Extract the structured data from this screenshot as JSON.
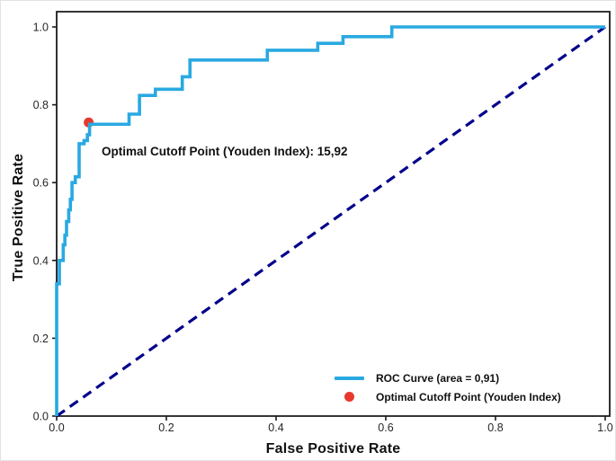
{
  "chart_data": {
    "type": "line",
    "xlabel": "False Positive Rate",
    "ylabel": "True Positive Rate",
    "x_ticks": [
      "0.0",
      "0.2",
      "0.4",
      "0.6",
      "0.8",
      "1.0"
    ],
    "y_ticks": [
      "0.0",
      "0.2",
      "0.4",
      "0.6",
      "0.8",
      "1.0"
    ],
    "xlim": [
      0,
      1.0
    ],
    "ylim": [
      0,
      1.04
    ],
    "grid": false,
    "legend_position": "lower right",
    "auc": "0,91",
    "optimal_cutoff_value": "15,92",
    "annotation": {
      "text": "Optimal Cutoff Point (Youden Index): 15,92",
      "x": 0.084,
      "y": 0.667
    },
    "series": [
      {
        "name": "ROC Curve (area = 0,91)",
        "style": "step-line",
        "color": "#29a9e1",
        "points": [
          [
            0.0,
            0.0
          ],
          [
            0.0,
            0.34
          ],
          [
            0.005,
            0.34
          ],
          [
            0.005,
            0.4
          ],
          [
            0.012,
            0.4
          ],
          [
            0.012,
            0.44
          ],
          [
            0.015,
            0.44
          ],
          [
            0.015,
            0.465
          ],
          [
            0.018,
            0.465
          ],
          [
            0.018,
            0.5
          ],
          [
            0.022,
            0.5
          ],
          [
            0.022,
            0.53
          ],
          [
            0.025,
            0.53
          ],
          [
            0.025,
            0.557
          ],
          [
            0.028,
            0.557
          ],
          [
            0.028,
            0.6
          ],
          [
            0.034,
            0.6
          ],
          [
            0.034,
            0.615
          ],
          [
            0.041,
            0.615
          ],
          [
            0.041,
            0.7
          ],
          [
            0.05,
            0.7
          ],
          [
            0.05,
            0.708
          ],
          [
            0.056,
            0.708
          ],
          [
            0.056,
            0.723
          ],
          [
            0.06,
            0.723
          ],
          [
            0.06,
            0.75
          ],
          [
            0.132,
            0.75
          ],
          [
            0.132,
            0.776
          ],
          [
            0.151,
            0.776
          ],
          [
            0.151,
            0.824
          ],
          [
            0.18,
            0.824
          ],
          [
            0.18,
            0.84
          ],
          [
            0.229,
            0.84
          ],
          [
            0.229,
            0.872
          ],
          [
            0.243,
            0.872
          ],
          [
            0.243,
            0.915
          ],
          [
            0.384,
            0.915
          ],
          [
            0.384,
            0.94
          ],
          [
            0.476,
            0.94
          ],
          [
            0.476,
            0.958
          ],
          [
            0.522,
            0.958
          ],
          [
            0.522,
            0.975
          ],
          [
            0.611,
            0.975
          ],
          [
            0.611,
            1.0
          ],
          [
            1.0,
            1.0
          ]
        ]
      },
      {
        "name": "Optimal Cutoff Point (Youden Index)",
        "style": "scatter",
        "color": "#e8392c",
        "points": [
          [
            0.06,
            0.75
          ]
        ]
      },
      {
        "name": "chance-diagonal",
        "style": "dashed-line",
        "color": "#00008b",
        "points": [
          [
            0.0,
            0.0
          ],
          [
            1.0,
            1.0
          ]
        ]
      }
    ]
  },
  "legend": {
    "entries": [
      {
        "label": "ROC Curve (area = 0,91)",
        "swatch": "line",
        "color": "#29a9e1"
      },
      {
        "label": "Optimal Cutoff Point (Youden Index)",
        "swatch": "dot",
        "color": "#e8392c"
      }
    ]
  },
  "colors": {
    "roc_curve": "#29a9e1",
    "diagonal": "#00008b",
    "optimal_point": "#e8392c",
    "axis": "#1a1a1a",
    "tick_text": "#262626"
  }
}
